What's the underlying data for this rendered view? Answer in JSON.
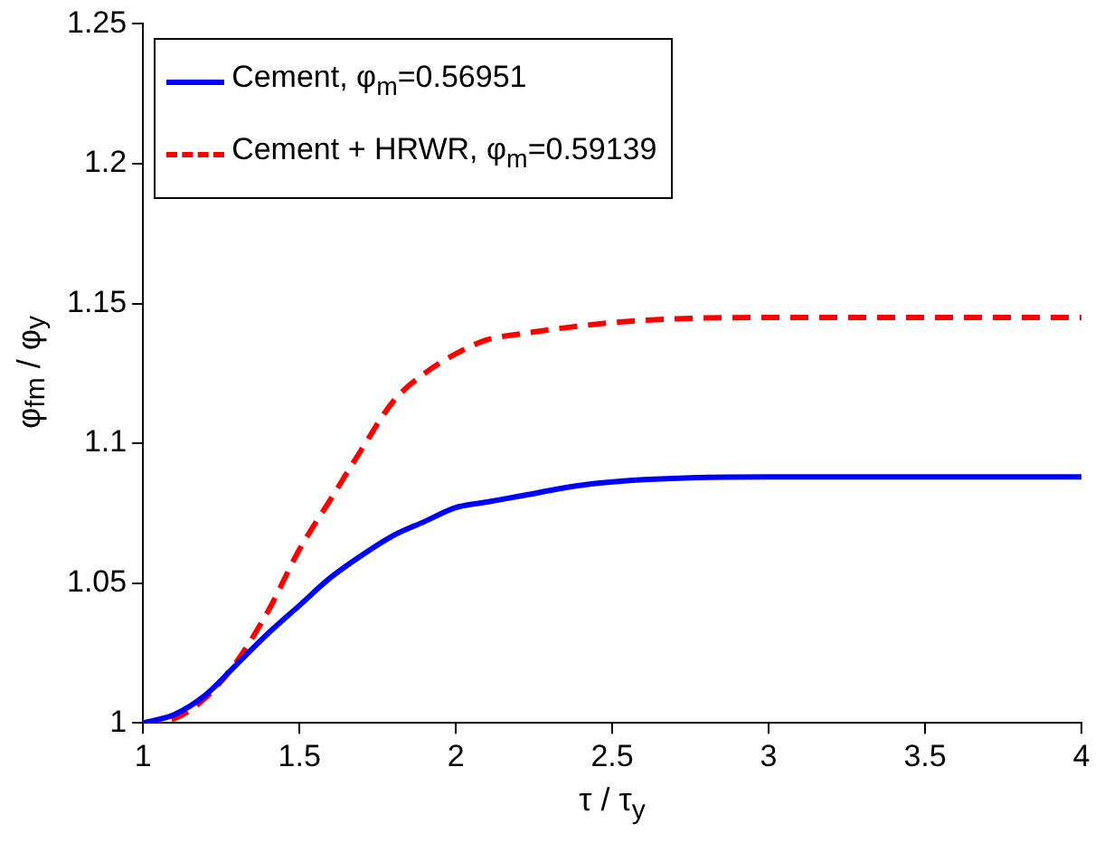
{
  "chart_data": {
    "type": "line",
    "xlabel": "τ / τ$_{y}$",
    "ylabel": "φ$_{fm}$ / φ$_{y}$",
    "x": [
      1,
      1.1,
      1.2,
      1.3,
      1.4,
      1.5,
      1.6,
      1.7,
      1.8,
      1.9,
      2,
      2.1,
      2.2,
      2.4,
      2.6,
      3,
      3.5,
      4
    ],
    "series": [
      {
        "name": "Cement, φ$_{m}$=0.56951",
        "color": "#0000ff",
        "line_style": "solid",
        "values": [
          1,
          1.003,
          1.01,
          1.021,
          1.032,
          1.042,
          1.052,
          1.06,
          1.067,
          1.072,
          1.077,
          1.079,
          1.081,
          1.085,
          1.087,
          1.088,
          1.088,
          1.088
        ]
      },
      {
        "name": "Cement + HRWR, φ$_{m}$=0.59139",
        "color": "#ff0000",
        "line_style": "dashed",
        "values": [
          1,
          1.0015,
          1.009,
          1.022,
          1.04,
          1.062,
          1.08,
          1.098,
          1.115,
          1.125,
          1.132,
          1.137,
          1.139,
          1.142,
          1.144,
          1.145,
          1.145,
          1.145
        ]
      }
    ],
    "xlim": [
      1,
      4
    ],
    "xticks": [
      1,
      1.5,
      2,
      2.5,
      3,
      3.5,
      4
    ],
    "ylim": [
      1,
      1.25
    ],
    "yticks": [
      1,
      1.05,
      1.1,
      1.15,
      1.2,
      1.25
    ],
    "grid": false,
    "legend": "top left",
    "marker": "none"
  }
}
